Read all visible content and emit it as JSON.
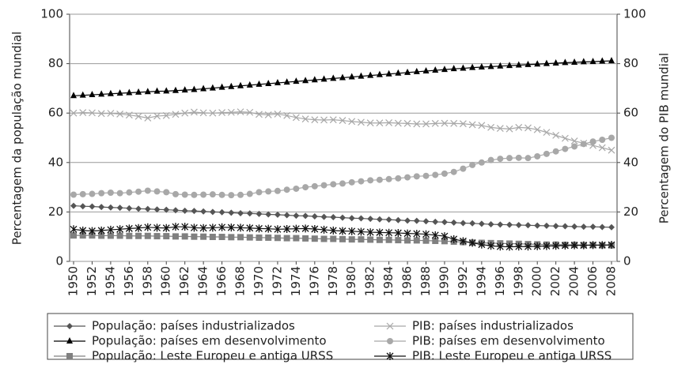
{
  "chart_data": {
    "type": "line",
    "ylabel": "Percentagem da população mundial",
    "y2label": "Percentagem do PIB mundial",
    "x": [
      1950,
      1951,
      1952,
      1953,
      1954,
      1955,
      1956,
      1957,
      1958,
      1959,
      1960,
      1961,
      1962,
      1963,
      1964,
      1965,
      1966,
      1967,
      1968,
      1969,
      1970,
      1971,
      1972,
      1973,
      1974,
      1975,
      1976,
      1977,
      1978,
      1979,
      1980,
      1981,
      1982,
      1983,
      1984,
      1985,
      1986,
      1987,
      1988,
      1989,
      1990,
      1991,
      1992,
      1993,
      1994,
      1995,
      1996,
      1997,
      1998,
      1999,
      2000,
      2001,
      2002,
      2003,
      2004,
      2005,
      2006,
      2007,
      2008
    ],
    "xlim": [
      1950,
      2008
    ],
    "xticks": [
      1950,
      1952,
      1954,
      1956,
      1958,
      1960,
      1962,
      1964,
      1966,
      1968,
      1970,
      1972,
      1974,
      1976,
      1978,
      1980,
      1982,
      1984,
      1986,
      1988,
      1990,
      1992,
      1994,
      1996,
      1998,
      2000,
      2002,
      2004,
      2006,
      2008
    ],
    "ylim": [
      0,
      100
    ],
    "yticks": [
      0,
      20,
      40,
      60,
      80,
      100
    ],
    "y2lim": [
      0,
      100
    ],
    "y2ticks": [
      0,
      20,
      40,
      60,
      80,
      100
    ],
    "grid": true,
    "series": [
      {
        "name": "População: países industrializados",
        "color": "#555555",
        "marker": "diamond",
        "values": [
          22.5,
          22.3,
          22.2,
          22.0,
          21.8,
          21.7,
          21.5,
          21.3,
          21.2,
          21.0,
          20.9,
          20.7,
          20.5,
          20.4,
          20.2,
          20.0,
          19.9,
          19.7,
          19.5,
          19.4,
          19.2,
          19.0,
          18.9,
          18.7,
          18.5,
          18.4,
          18.2,
          18.0,
          17.9,
          17.7,
          17.5,
          17.4,
          17.2,
          17.0,
          16.9,
          16.7,
          16.5,
          16.4,
          16.2,
          16.0,
          15.9,
          15.7,
          15.5,
          15.4,
          15.2,
          15.0,
          14.9,
          14.8,
          14.7,
          14.6,
          14.5,
          14.4,
          14.3,
          14.2,
          14.1,
          14.0,
          14.0,
          13.9,
          13.8
        ]
      },
      {
        "name": "PIB: países industrializados",
        "color": "#a8a8a8",
        "marker": "x",
        "values": [
          60.0,
          60.2,
          60.1,
          59.8,
          59.9,
          59.6,
          59.2,
          58.7,
          58.0,
          58.8,
          59.0,
          59.5,
          60.0,
          60.4,
          60.1,
          60.0,
          60.2,
          60.3,
          60.5,
          60.3,
          59.5,
          59.3,
          59.6,
          59.0,
          58.2,
          57.6,
          57.3,
          57.2,
          57.3,
          57.0,
          56.6,
          56.3,
          56.0,
          56.0,
          56.1,
          55.9,
          55.8,
          55.6,
          55.6,
          55.8,
          55.9,
          55.8,
          55.7,
          55.3,
          55.0,
          54.2,
          53.8,
          53.6,
          54.2,
          54.0,
          53.3,
          52.2,
          51.0,
          49.8,
          48.7,
          47.8,
          46.9,
          46.0,
          45.0
        ]
      },
      {
        "name": "População: países em desenvolvimento",
        "color": "#000000",
        "marker": "triangle",
        "values": [
          67.0,
          67.2,
          67.4,
          67.6,
          67.8,
          68.0,
          68.2,
          68.4,
          68.6,
          68.8,
          68.9,
          69.1,
          69.3,
          69.5,
          69.8,
          70.1,
          70.4,
          70.7,
          71.0,
          71.3,
          71.6,
          71.9,
          72.2,
          72.5,
          72.8,
          73.1,
          73.4,
          73.7,
          74.0,
          74.3,
          74.6,
          74.9,
          75.2,
          75.5,
          75.8,
          76.1,
          76.4,
          76.7,
          77.0,
          77.3,
          77.6,
          77.9,
          78.1,
          78.4,
          78.6,
          78.8,
          79.0,
          79.2,
          79.4,
          79.6,
          79.8,
          80.0,
          80.2,
          80.4,
          80.5,
          80.7,
          80.8,
          81.0,
          81.1
        ]
      },
      {
        "name": "PIB: países em desenvolvimento",
        "color": "#a8a8a8",
        "marker": "circle",
        "values": [
          27.0,
          27.2,
          27.3,
          27.6,
          27.8,
          27.6,
          27.9,
          28.2,
          28.6,
          28.3,
          28.0,
          27.2,
          27.0,
          26.9,
          27.0,
          27.1,
          26.9,
          26.8,
          26.9,
          27.3,
          28.0,
          28.3,
          28.5,
          29.0,
          29.4,
          30.0,
          30.4,
          30.8,
          31.2,
          31.5,
          32.0,
          32.4,
          32.8,
          33.0,
          33.3,
          33.6,
          34.0,
          34.4,
          34.6,
          35.0,
          35.5,
          36.2,
          37.5,
          39.0,
          40.0,
          41.0,
          41.5,
          41.8,
          41.9,
          41.8,
          42.5,
          43.5,
          44.5,
          45.5,
          46.5,
          47.5,
          48.5,
          49.2,
          50.0
        ]
      },
      {
        "name": "População: Leste Europeu e antiga URSS",
        "color": "#808080",
        "marker": "square",
        "values": [
          10.5,
          10.5,
          10.5,
          10.4,
          10.4,
          10.4,
          10.3,
          10.3,
          10.3,
          10.2,
          10.2,
          10.1,
          10.1,
          10.0,
          10.0,
          9.9,
          9.9,
          9.8,
          9.8,
          9.7,
          9.6,
          9.6,
          9.5,
          9.4,
          9.4,
          9.3,
          9.2,
          9.1,
          9.1,
          9.0,
          8.9,
          8.9,
          8.8,
          8.7,
          8.7,
          8.6,
          8.5,
          8.5,
          8.4,
          8.3,
          8.2,
          8.0,
          7.8,
          7.6,
          7.5,
          7.4,
          7.3,
          7.2,
          7.1,
          7.0,
          6.9,
          6.8,
          6.8,
          6.7,
          6.7,
          6.6,
          6.6,
          6.5,
          6.5
        ]
      },
      {
        "name": "PIB: Leste Europeu e antiga URSS",
        "color": "#111111",
        "marker": "asterisk",
        "values": [
          13.0,
          12.5,
          12.3,
          12.5,
          12.8,
          13.0,
          13.3,
          13.5,
          13.8,
          13.6,
          13.5,
          14.0,
          14.0,
          13.6,
          13.5,
          13.6,
          13.8,
          13.7,
          13.6,
          13.5,
          13.3,
          13.2,
          13.0,
          13.1,
          13.2,
          13.3,
          13.1,
          12.8,
          12.5,
          12.3,
          12.2,
          12.0,
          11.8,
          11.7,
          11.6,
          11.5,
          11.3,
          11.2,
          11.0,
          10.6,
          10.2,
          9.0,
          8.2,
          7.5,
          6.8,
          6.3,
          6.0,
          5.9,
          6.0,
          6.0,
          6.1,
          6.2,
          6.3,
          6.4,
          6.5,
          6.5,
          6.6,
          6.6,
          6.7
        ]
      }
    ]
  }
}
